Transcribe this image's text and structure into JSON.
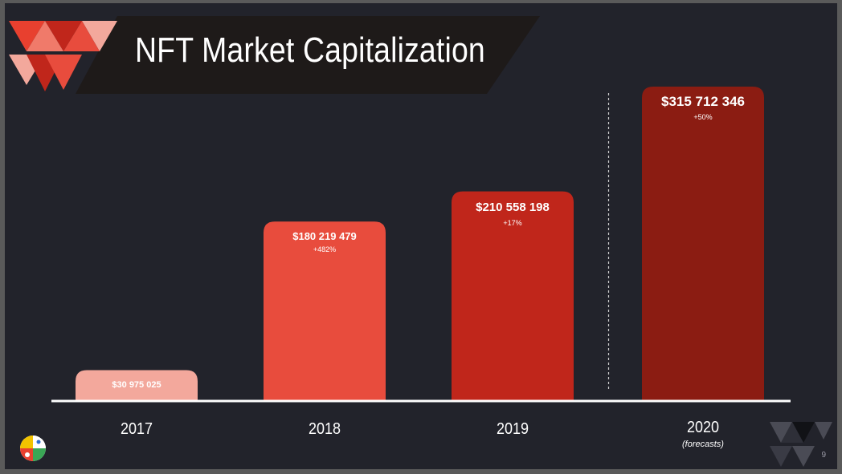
{
  "slide": {
    "title": "NFT Market Capitalization",
    "page_number": "9"
  },
  "colors": {
    "background": "#22232b",
    "banner": "#1e1a19",
    "axis": "#ffffff",
    "bar_2017": "#f3a89c",
    "bar_2018": "#e84c3d",
    "bar_2019": "#c0261b",
    "bar_2020": "#8b1c12"
  },
  "chart_data": {
    "type": "bar",
    "title": "NFT Market Capitalization",
    "categories": [
      "2017",
      "2018",
      "2019",
      "2020"
    ],
    "category_notes": [
      "",
      "",
      "",
      "(forecasts)"
    ],
    "values": [
      30975025,
      180219479,
      210558198,
      315712346
    ],
    "value_labels": [
      "$30 975 025",
      "$180 219 479",
      "$210 558 198",
      "$315 712 346"
    ],
    "growth_labels": [
      "",
      "+482%",
      "+17%",
      "+50%"
    ],
    "bar_colors": [
      "#f3a89c",
      "#e84c3d",
      "#c0261b",
      "#8b1c12"
    ],
    "forecast_separator_before_index": 3,
    "ylim": [
      0,
      315712346
    ],
    "xlabel": "",
    "ylabel": "",
    "grid": false,
    "legend": "none"
  }
}
